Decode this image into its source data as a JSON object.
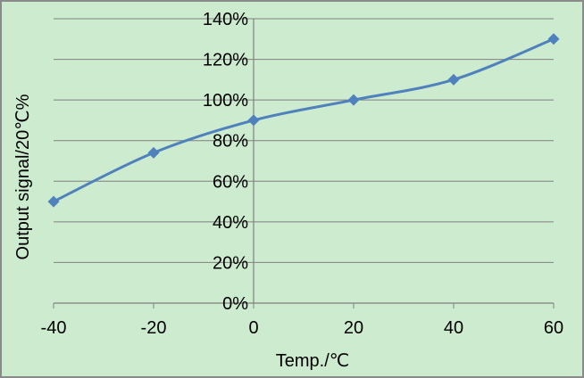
{
  "chart_data": {
    "type": "line",
    "title": "",
    "xlabel": "Temp./℃",
    "ylabel": "Output signal/20℃%",
    "x": [
      -40,
      -20,
      0,
      20,
      40,
      60
    ],
    "series": [
      {
        "values": [
          50,
          74,
          90,
          100,
          110,
          130
        ]
      }
    ],
    "xlim": [
      -40,
      60
    ],
    "ylim": [
      0,
      140
    ],
    "xticks": [
      -40,
      -20,
      0,
      20,
      40,
      60
    ],
    "yticks": [
      0,
      20,
      40,
      60,
      80,
      100,
      120,
      140
    ],
    "xtick_labels": [
      "-40",
      "-20",
      "0",
      "20",
      "40",
      "60"
    ],
    "ytick_labels": [
      "0%",
      "20%",
      "40%",
      "60%",
      "80%",
      "100%",
      "120%",
      "140%"
    ],
    "grid": true,
    "legend": "none",
    "line_style": "smooth",
    "marker": "diamond",
    "colors": {
      "background": "#cdebcf",
      "border": "#8a8a8a",
      "grid": "#808080",
      "series": "#4f81bd",
      "text": "#000000"
    }
  }
}
